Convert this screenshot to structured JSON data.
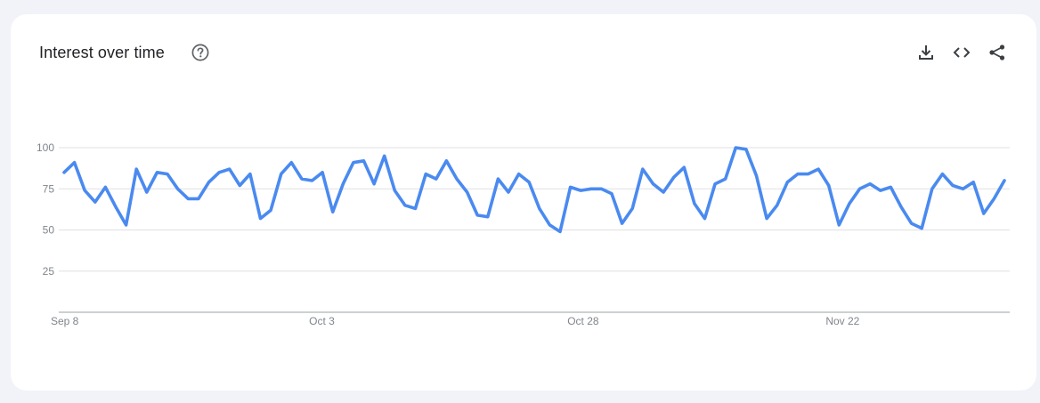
{
  "header": {
    "title": "Interest over time"
  },
  "toolbar": {
    "download_icon": "download-icon",
    "embed_icon": "embed-icon",
    "share_icon": "share-icon",
    "help_icon": "help-icon"
  },
  "colors": {
    "line": "#4a8af0",
    "grid": "#e0e0e0",
    "axis": "#9aa0a6",
    "tick_text": "#80868b"
  },
  "chart_data": {
    "type": "line",
    "title": "Interest over time",
    "xlabel": "",
    "ylabel": "",
    "ylim": [
      0,
      100
    ],
    "y_ticks": [
      25,
      50,
      75,
      100
    ],
    "x_tick_labels": [
      {
        "label": "Sep 8",
        "index": 0
      },
      {
        "label": "Oct 3",
        "index": 25
      },
      {
        "label": "Oct 28",
        "index": 50
      },
      {
        "label": "Nov 22",
        "index": 75
      }
    ],
    "grid": true,
    "legend": "none",
    "series": [
      {
        "values": [
          85,
          91,
          74,
          67,
          76,
          64,
          53,
          87,
          73,
          85,
          84,
          75,
          69,
          69,
          79,
          85,
          87,
          77,
          84,
          57,
          62,
          84,
          91,
          81,
          80,
          85,
          61,
          78,
          91,
          92,
          78,
          95,
          74,
          65,
          63,
          84,
          81,
          92,
          81,
          73,
          59,
          58,
          81,
          73,
          84,
          79,
          63,
          53,
          49,
          76,
          74,
          75,
          75,
          72,
          54,
          63,
          87,
          78,
          73,
          82,
          88,
          66,
          57,
          78,
          81,
          100,
          99,
          83,
          57,
          65,
          79,
          84,
          84,
          87,
          77,
          53,
          66,
          75,
          78,
          74,
          76,
          64,
          54,
          51,
          75,
          84,
          77,
          75,
          79,
          60,
          69,
          80
        ]
      }
    ]
  }
}
